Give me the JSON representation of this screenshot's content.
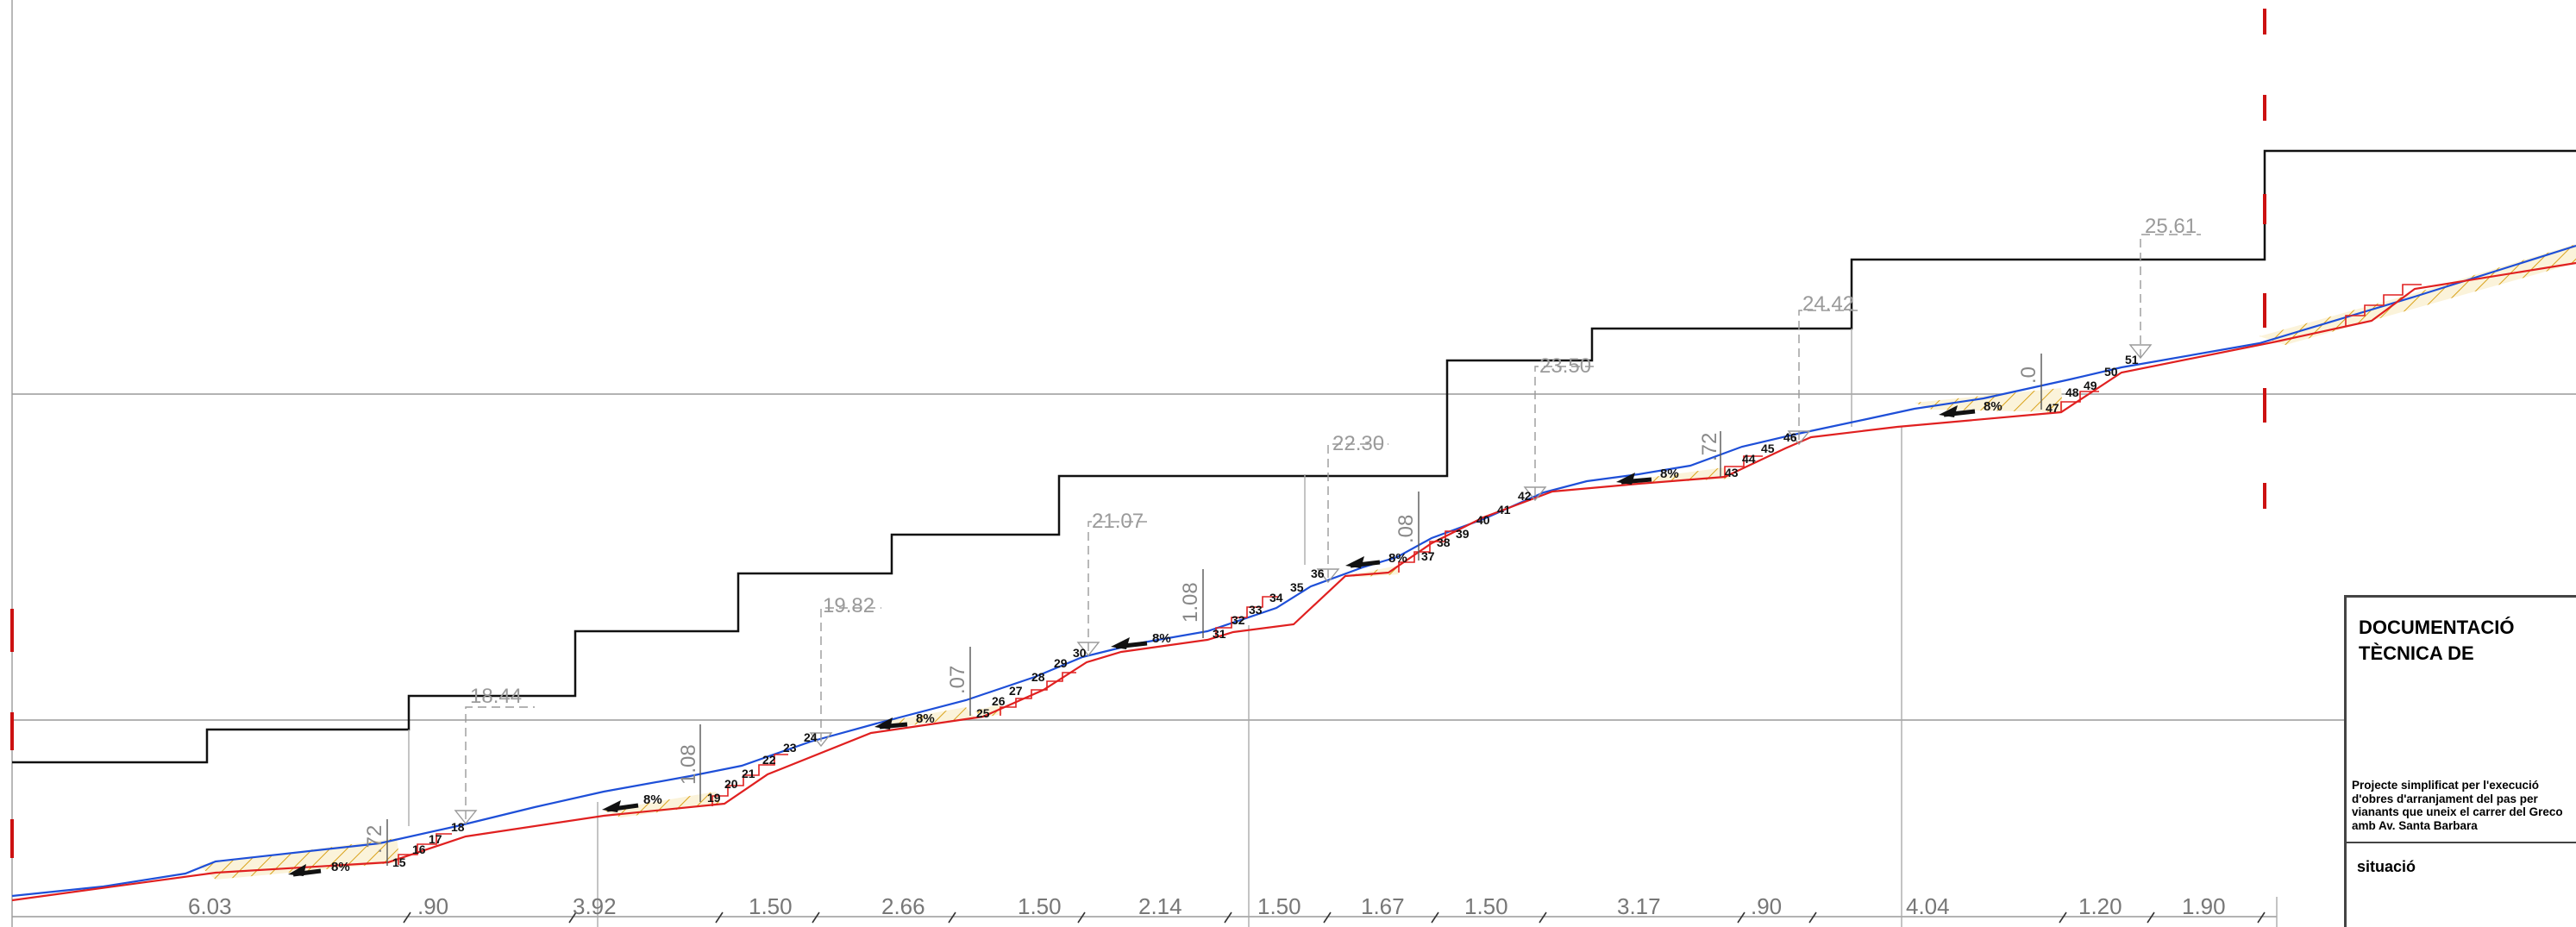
{
  "section": {
    "ramp_slope_label": "8%",
    "step_numbers": [
      "15",
      "16",
      "17",
      "18",
      "19",
      "20",
      "21",
      "22",
      "23",
      "24",
      "25",
      "26",
      "27",
      "28",
      "29",
      "30",
      "31",
      "32",
      "33",
      "34",
      "35",
      "36",
      "37",
      "38",
      "39",
      "40",
      "41",
      "42",
      "43",
      "44",
      "45",
      "46",
      "47",
      "48",
      "49",
      "50",
      "51"
    ],
    "elevations": [
      "18.44",
      "19.82",
      "21.07",
      "22.30",
      "23.50",
      "24.42",
      "25.61"
    ],
    "heights": [
      ".72",
      "1.08",
      ".07",
      "1.08",
      ".08",
      ".72",
      ".0"
    ],
    "distances": [
      "6.03",
      ".90",
      "3.92",
      "1.50",
      "2.66",
      "1.50",
      "2.14",
      "1.50",
      "1.67",
      "1.50",
      "3.17",
      ".90",
      "4.04",
      "1.20",
      "1.90"
    ]
  },
  "colors": {
    "terrain_line": "#1e4fd8",
    "ramp_line": "#e02020",
    "hatch": "#d9a21a",
    "axis_mark": "#cc1111",
    "grey_text": "#9a9a9a"
  },
  "title_block": {
    "heading": "DOCUMENTACIÓ TÈCNICA DE",
    "description": "Projecte simplificat per l'execució d'obres d'arranjament del pas per vianants que uneix el carrer del Greco amb Av. Santa Barbara",
    "sheet": "situació"
  }
}
